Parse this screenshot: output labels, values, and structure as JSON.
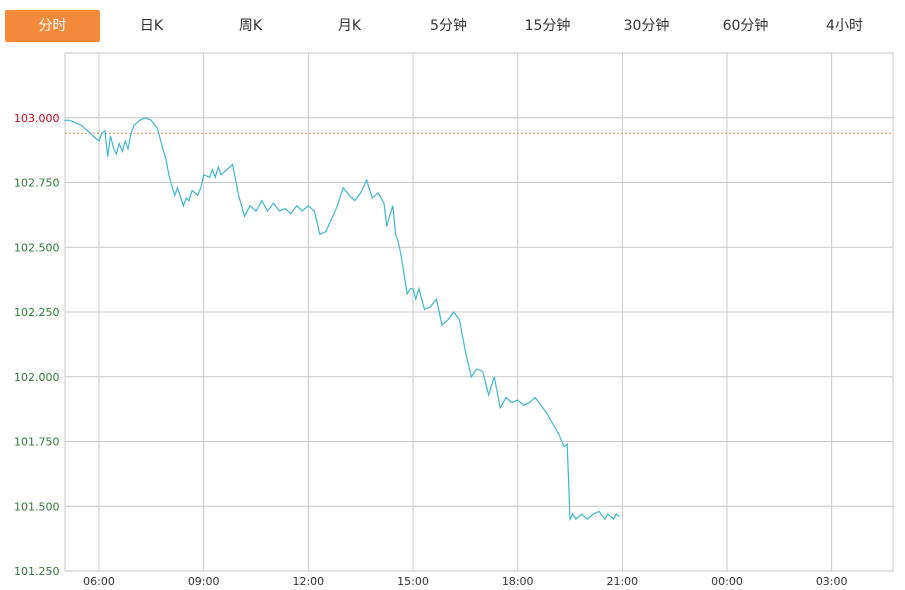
{
  "tabs": {
    "items": [
      {
        "label": "分时",
        "active": true
      },
      {
        "label": "日K",
        "active": false
      },
      {
        "label": "周K",
        "active": false
      },
      {
        "label": "月K",
        "active": false
      },
      {
        "label": "5分钟",
        "active": false
      },
      {
        "label": "15分钟",
        "active": false
      },
      {
        "label": "30分钟",
        "active": false
      },
      {
        "label": "60分钟",
        "active": false
      },
      {
        "label": "4小时",
        "active": false
      }
    ]
  },
  "colors": {
    "accent": "#f5893a",
    "line": "#3fb8cf",
    "reference": "#e8874f",
    "grid": "#c8c8c8",
    "ylabel_green": "#2f7a3a",
    "ylabel_red": "#d0021b"
  },
  "chart_data": {
    "type": "line",
    "title": "",
    "xlabel": "",
    "ylabel": "",
    "x_ticks": [
      "06:00",
      "09:00",
      "12:00",
      "15:00",
      "18:00",
      "21:00",
      "00:00",
      "03:00"
    ],
    "y_ticks": [
      "103.000",
      "102.750",
      "102.500",
      "102.250",
      "102.000",
      "101.750",
      "101.500",
      "101.250"
    ],
    "ylim": [
      101.25,
      103.25
    ],
    "reference_price": 102.94,
    "grid": true,
    "x_unit": "hours from 05:00",
    "series": [
      {
        "x": [
          0.0,
          0.17,
          0.33,
          0.5,
          0.67,
          0.83,
          1.0,
          1.08,
          1.17,
          1.25,
          1.33,
          1.42,
          1.5,
          1.58,
          1.67,
          1.75,
          1.83,
          1.92,
          2.0,
          2.08,
          2.17,
          2.33,
          2.5,
          2.67,
          2.75,
          2.83,
          2.92,
          3.0,
          3.08,
          3.17,
          3.25,
          3.42,
          3.5,
          3.58,
          3.67,
          3.83,
          3.92,
          4.0,
          4.17,
          4.25,
          4.33,
          4.42,
          4.5,
          4.67,
          4.83,
          5.0,
          5.17,
          5.33,
          5.5,
          5.67,
          5.83,
          6.0,
          6.17,
          6.33,
          6.5,
          6.67,
          6.83,
          7.0,
          7.17,
          7.33,
          7.5,
          7.67,
          7.83,
          8.0,
          8.17,
          8.33,
          8.5,
          8.67,
          8.83,
          9.0,
          9.17,
          9.25,
          9.33,
          9.42,
          9.5,
          9.58,
          9.67,
          9.75,
          9.83,
          9.92,
          10.0,
          10.08,
          10.17,
          10.25,
          10.33,
          10.5,
          10.67,
          10.83,
          11.0,
          11.17,
          11.33,
          11.5,
          11.67,
          11.83,
          12.0,
          12.17,
          12.33,
          12.5,
          12.67,
          12.83,
          13.0,
          13.17,
          13.33,
          13.5,
          13.67,
          13.83,
          14.0,
          14.17,
          14.33,
          14.42,
          14.5,
          14.58,
          14.67,
          14.83,
          15.0,
          15.17,
          15.33,
          15.5,
          15.58,
          15.67,
          15.75,
          15.83,
          15.92
        ],
        "y": [
          102.99,
          102.99,
          102.98,
          102.97,
          102.95,
          102.93,
          102.91,
          102.94,
          102.95,
          102.85,
          102.93,
          102.88,
          102.86,
          102.9,
          102.87,
          102.91,
          102.88,
          102.94,
          102.97,
          102.98,
          102.99,
          103.0,
          102.99,
          102.96,
          102.92,
          102.88,
          102.84,
          102.78,
          102.74,
          102.7,
          102.73,
          102.66,
          102.69,
          102.68,
          102.72,
          102.7,
          102.73,
          102.78,
          102.77,
          102.8,
          102.77,
          102.81,
          102.78,
          102.8,
          102.82,
          102.7,
          102.62,
          102.66,
          102.64,
          102.68,
          102.64,
          102.67,
          102.64,
          102.65,
          102.63,
          102.66,
          102.64,
          102.66,
          102.64,
          102.55,
          102.56,
          102.61,
          102.66,
          102.73,
          102.7,
          102.68,
          102.71,
          102.76,
          102.69,
          102.71,
          102.67,
          102.58,
          102.62,
          102.66,
          102.55,
          102.52,
          102.46,
          102.39,
          102.32,
          102.34,
          102.34,
          102.3,
          102.34,
          102.3,
          102.26,
          102.27,
          102.3,
          102.2,
          102.22,
          102.25,
          102.22,
          102.1,
          102.0,
          102.03,
          102.02,
          101.93,
          102.0,
          101.88,
          101.92,
          101.9,
          101.91,
          101.89,
          101.9,
          101.92,
          101.89,
          101.86,
          101.82,
          101.78,
          101.73,
          101.74,
          101.45,
          101.47,
          101.45,
          101.47,
          101.45,
          101.47,
          101.48,
          101.45,
          101.47,
          101.46,
          101.45,
          101.47,
          101.46
        ]
      }
    ]
  }
}
